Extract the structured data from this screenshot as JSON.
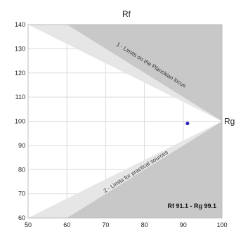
{
  "chart_data": {
    "type": "scatter",
    "title": "Rf",
    "xlabel": "Rg",
    "ylabel": "",
    "xlim": [
      50,
      100
    ],
    "ylim": [
      60,
      140
    ],
    "x_ticks": [
      50,
      60,
      70,
      80,
      90,
      100
    ],
    "y_ticks": [
      60,
      70,
      80,
      90,
      100,
      110,
      120,
      130,
      140
    ],
    "grid": true,
    "points": [
      {
        "x": 91.1,
        "y": 99.1,
        "color": "#2222bb"
      }
    ],
    "regions": [
      {
        "label": "1 - Limits on the Planckian locus",
        "polygon": [
          [
            60,
            140
          ],
          [
            100,
            140
          ],
          [
            100,
            100
          ]
        ],
        "color": "#c8c8c8"
      },
      {
        "label": "2 - Limits for practical sources",
        "polygon": [
          [
            60,
            60
          ],
          [
            100,
            60
          ],
          [
            100,
            100
          ]
        ],
        "color": "#c8c8c8"
      },
      {
        "label": "",
        "polygon": [
          [
            50,
            140
          ],
          [
            60,
            140
          ],
          [
            100,
            100
          ]
        ],
        "color": "#e6e6e6"
      },
      {
        "label": "",
        "polygon": [
          [
            50,
            60
          ],
          [
            60,
            60
          ],
          [
            100,
            100
          ]
        ],
        "color": "#e6e6e6"
      }
    ],
    "annotation": "Rf 91.1 - Rg 99.1"
  }
}
